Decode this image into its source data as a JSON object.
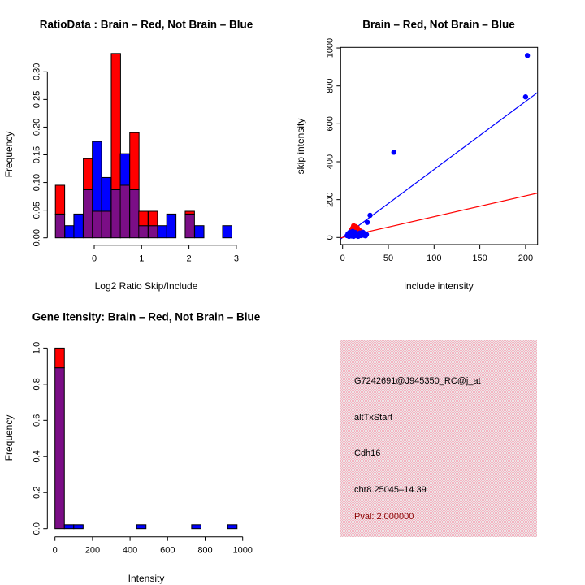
{
  "colors": {
    "red": "#ff0000",
    "blue": "#0000ff",
    "overlap": "#7b0e86",
    "pval_red": "#8b0000",
    "info_box_pink": "#f2c3ce",
    "axis": "#000000",
    "background": "#ffffff"
  },
  "info_box": {
    "lines": [
      "G7242691@J945350_RC@j_at",
      "altTxStart",
      "Cdh16",
      "chr8.25045–14.39"
    ],
    "pval": "Pval: 2.000000"
  },
  "chart_data": [
    {
      "type": "bar",
      "subtype": "overlaid_histogram",
      "title": "RatioData : Brain – Red, Not Brain – Blue",
      "xlabel": "Log2 Ratio Skip/Include",
      "ylabel": "Frequency",
      "legend_note": "Brain = red, Not Brain = blue, overlap = purple",
      "xlim": [
        -0.9,
        3.05
      ],
      "ylim": [
        0,
        0.335
      ],
      "grid": false,
      "x_tick_values": [
        0,
        1,
        2,
        3
      ],
      "x_tick_labels": [
        "0",
        "1",
        "2",
        "3"
      ],
      "y_tick_values": [
        0,
        0.05,
        0.1,
        0.15,
        0.2,
        0.25,
        0.3
      ],
      "y_tick_labels": [
        "0.00",
        "0.05",
        "0.10",
        "0.15",
        "0.20",
        "0.25",
        "0.30"
      ],
      "bin_width": 0.196,
      "bins": [
        {
          "x0": -0.82,
          "red": 0.095,
          "blue": 0.043
        },
        {
          "x0": -0.62,
          "red": 0,
          "blue": 0.022
        },
        {
          "x0": -0.43,
          "red": 0,
          "blue": 0.043
        },
        {
          "x0": -0.23,
          "red": 0.143,
          "blue": 0.087
        },
        {
          "x0": -0.04,
          "red": 0.048,
          "blue": 0.174
        },
        {
          "x0": 0.16,
          "red": 0.048,
          "blue": 0.109
        },
        {
          "x0": 0.36,
          "red": 0.333,
          "blue": 0.087
        },
        {
          "x0": 0.55,
          "red": 0.095,
          "blue": 0.152
        },
        {
          "x0": 0.75,
          "red": 0.19,
          "blue": 0.087
        },
        {
          "x0": 0.94,
          "red": 0.048,
          "blue": 0.022
        },
        {
          "x0": 1.14,
          "red": 0.048,
          "blue": 0.022
        },
        {
          "x0": 1.34,
          "red": 0,
          "blue": 0.022
        },
        {
          "x0": 1.53,
          "red": 0,
          "blue": 0.043
        },
        {
          "x0": 1.73,
          "red": 0,
          "blue": 0
        },
        {
          "x0": 1.92,
          "red": 0.048,
          "blue": 0.043
        },
        {
          "x0": 2.12,
          "red": 0,
          "blue": 0.022
        },
        {
          "x0": 2.32,
          "red": 0,
          "blue": 0
        },
        {
          "x0": 2.51,
          "red": 0,
          "blue": 0
        },
        {
          "x0": 2.71,
          "red": 0,
          "blue": 0.022
        }
      ]
    },
    {
      "type": "scatter",
      "title": "Brain – Red, Not Brain – Blue",
      "xlabel": "include intensity",
      "ylabel": "skip intensity",
      "xlim": [
        -2,
        213
      ],
      "ylim": [
        -37,
        1040
      ],
      "grid": false,
      "x_tick_values": [
        0,
        50,
        100,
        150,
        200
      ],
      "x_tick_labels": [
        "0",
        "50",
        "100",
        "150",
        "200"
      ],
      "y_tick_values": [
        0,
        200,
        400,
        600,
        800,
        1000
      ],
      "y_tick_labels": [
        "0",
        "200",
        "400",
        "600",
        "800",
        "1000"
      ],
      "series": [
        {
          "name": "Brain",
          "color": "red",
          "points": [
            [
              10,
              42
            ],
            [
              11,
              50
            ],
            [
              12,
              62
            ],
            [
              13,
              44
            ],
            [
              14,
              58
            ],
            [
              15,
              36
            ],
            [
              16,
              52
            ],
            [
              18,
              40
            ],
            [
              20,
              32
            ],
            [
              22,
              28
            ]
          ]
        },
        {
          "name": "Not Brain",
          "color": "blue",
          "points": [
            [
              202,
              960
            ],
            [
              200,
              742
            ],
            [
              56,
              450
            ],
            [
              30,
              117
            ],
            [
              27,
              80
            ],
            [
              5,
              10
            ],
            [
              6,
              20
            ],
            [
              7,
              6
            ],
            [
              8,
              15
            ],
            [
              8,
              28
            ],
            [
              9,
              22
            ],
            [
              10,
              8
            ],
            [
              11,
              18
            ],
            [
              11,
              32
            ],
            [
              12,
              6
            ],
            [
              13,
              15
            ],
            [
              14,
              26
            ],
            [
              15,
              10
            ],
            [
              16,
              20
            ],
            [
              17,
              6
            ],
            [
              18,
              14
            ],
            [
              19,
              24
            ],
            [
              20,
              10
            ],
            [
              21,
              18
            ],
            [
              22,
              28
            ],
            [
              23,
              12
            ],
            [
              24,
              20
            ],
            [
              25,
              9
            ],
            [
              26,
              16
            ]
          ]
        }
      ],
      "fit_lines": [
        {
          "color": "blue",
          "slope": 3.59,
          "intercept": 0
        },
        {
          "color": "red",
          "slope": 1.1,
          "intercept": 0
        }
      ]
    },
    {
      "type": "bar",
      "subtype": "overlaid_histogram",
      "title": "Gene Itensity: Brain – Red, Not Brain – Blue",
      "xlabel": "Intensity",
      "ylabel": "Frequency",
      "legend_note": "Brain = red, Not Brain = blue, overlap = purple",
      "xlim": [
        -10,
        1010
      ],
      "ylim": [
        0,
        1.04
      ],
      "grid": false,
      "x_tick_values": [
        0,
        200,
        400,
        600,
        800,
        1000
      ],
      "x_tick_labels": [
        "0",
        "200",
        "400",
        "600",
        "800",
        "1000"
      ],
      "y_tick_values": [
        0,
        0.2,
        0.4,
        0.6,
        0.8,
        1.0
      ],
      "y_tick_labels": [
        "0.0",
        "0.2",
        "0.4",
        "0.6",
        "0.8",
        "1.0"
      ],
      "bin_width": 50,
      "bins": [
        {
          "x0": 0,
          "red": 1.0,
          "blue": 0.891
        },
        {
          "x0": 50,
          "red": 0,
          "blue": 0.022
        },
        {
          "x0": 100,
          "red": 0,
          "blue": 0.022
        },
        {
          "x0": 435,
          "red": 0,
          "blue": 0.022
        },
        {
          "x0": 728,
          "red": 0,
          "blue": 0.022
        },
        {
          "x0": 920,
          "red": 0,
          "blue": 0.022
        }
      ]
    }
  ]
}
